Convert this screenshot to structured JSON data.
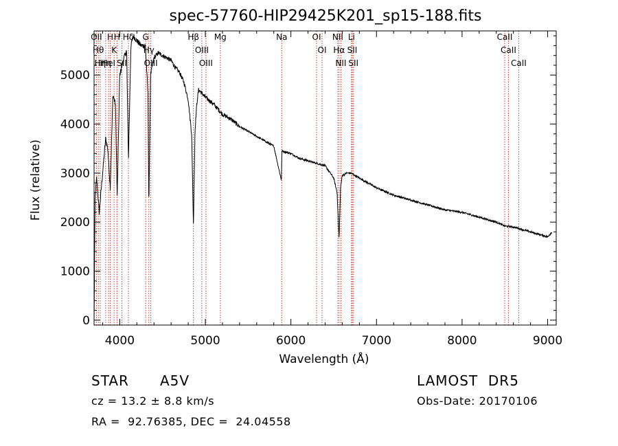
{
  "chart_data": {
    "type": "line",
    "title": "spec-57760-HIP29425K201_sp15-188.fits",
    "xlabel": "Wavelength (Å)",
    "ylabel": "Flux (relative)",
    "xlim": [
      3700,
      9100
    ],
    "ylim": [
      -100,
      5900
    ],
    "x_ticks": [
      4000,
      5000,
      6000,
      7000,
      8000,
      9000
    ],
    "x_tick_labels": [
      "4000",
      "5000",
      "6000",
      "7000",
      "8000",
      "9000"
    ],
    "y_ticks": [
      0,
      1000,
      2000,
      3000,
      4000,
      5000
    ],
    "y_tick_labels": [
      "0",
      "1000",
      "2000",
      "3000",
      "4000",
      "5000"
    ],
    "grid": false,
    "series": [
      {
        "color": "#000000",
        "anchors_x": [
          3700,
          3712,
          3730,
          3760,
          3800,
          3835,
          3860,
          3889,
          3920,
          3950,
          3970,
          4000,
          4040,
          4080,
          4102,
          4130,
          4160,
          4200,
          4250,
          4300,
          4330,
          4340,
          4360,
          4400,
          4450,
          4500,
          4550,
          4600,
          4650,
          4700,
          4750,
          4800,
          4840,
          4861,
          4880,
          4900,
          4920,
          4950,
          5000,
          5100,
          5200,
          5300,
          5400,
          5500,
          5600,
          5700,
          5800,
          5889,
          5895,
          6000,
          6100,
          6200,
          6300,
          6400,
          6500,
          6540,
          6563,
          6580,
          6600,
          6650,
          6700,
          6800,
          6900,
          7000,
          7200,
          7400,
          7600,
          7800,
          8000,
          8200,
          8400,
          8500,
          8600,
          8700,
          8800,
          8900,
          9000,
          9050
        ],
        "anchors_y": [
          0,
          2500,
          2900,
          2200,
          3000,
          3700,
          3500,
          2700,
          4600,
          4400,
          2500,
          5000,
          5300,
          5500,
          3300,
          5600,
          5800,
          5700,
          5600,
          5600,
          4600,
          2300,
          5000,
          5350,
          5450,
          5400,
          5350,
          5300,
          5150,
          5050,
          4850,
          4500,
          3800,
          1950,
          3900,
          4400,
          4700,
          4650,
          4550,
          4400,
          4200,
          4100,
          3950,
          3850,
          3750,
          3650,
          3550,
          2850,
          3450,
          3400,
          3300,
          3250,
          3200,
          3150,
          2900,
          2600,
          1650,
          2700,
          2950,
          3000,
          3000,
          2900,
          2800,
          2700,
          2550,
          2450,
          2350,
          2250,
          2200,
          2100,
          2000,
          1920,
          1900,
          1850,
          1800,
          1750,
          1700,
          1800
        ]
      }
    ],
    "lines": [
      {
        "x": 3727,
        "labels": [
          "OII"
        ]
      },
      {
        "x": 3750,
        "labels": [
          "Hθ"
        ]
      },
      {
        "x": 3771,
        "labels": [
          "Hη"
        ]
      },
      {
        "x": 3835,
        "labels": [
          "Hη"
        ]
      },
      {
        "x": 3869,
        "labels": [
          "HeI"
        ]
      },
      {
        "x": 3889,
        "labels": [
          "H"
        ]
      },
      {
        "x": 3934,
        "labels": [
          "K"
        ]
      },
      {
        "x": 3968,
        "labels": [
          "H"
        ]
      },
      {
        "x": 4026,
        "labels": [
          "SII"
        ]
      },
      {
        "x": 4101,
        "labels": [
          "Hδ"
        ]
      },
      {
        "x": 4303,
        "labels": [
          "G"
        ]
      },
      {
        "x": 4340,
        "labels": [
          "Hγ"
        ]
      },
      {
        "x": 4363,
        "labels": [
          "OIII"
        ]
      },
      {
        "x": 4861,
        "labels": [
          "Hβ"
        ]
      },
      {
        "x": 4959,
        "labels": [
          "OIII"
        ]
      },
      {
        "x": 5007,
        "labels": [
          "OIII"
        ]
      },
      {
        "x": 5175,
        "labels": [
          "Mg"
        ]
      },
      {
        "x": 5893,
        "labels": [
          "Na"
        ]
      },
      {
        "x": 6300,
        "labels": [
          "OI"
        ]
      },
      {
        "x": 6364,
        "labels": [
          "OI"
        ]
      },
      {
        "x": 6548,
        "labels": [
          "NII"
        ]
      },
      {
        "x": 6563,
        "labels": [
          "Hα"
        ]
      },
      {
        "x": 6584,
        "labels": [
          "NII"
        ]
      },
      {
        "x": 6708,
        "labels": [
          "Li"
        ]
      },
      {
        "x": 6717,
        "labels": [
          "SII"
        ]
      },
      {
        "x": 6731,
        "labels": [
          "SII"
        ]
      },
      {
        "x": 8498,
        "labels": [
          "CaII"
        ]
      },
      {
        "x": 8542,
        "labels": [
          "CaII"
        ]
      },
      {
        "x": 8662,
        "labels": [
          "CaII"
        ]
      }
    ],
    "line_color": "#c0392b"
  },
  "info": {
    "object_class": "STAR",
    "subclass": "A5V",
    "survey": "LAMOST  DR5",
    "cz": "cz = 13.2 ± 8.8 km/s",
    "obs_date": "Obs-Date: 20170106",
    "coords": "RA =  92.76385, DEC =  24.04558"
  }
}
